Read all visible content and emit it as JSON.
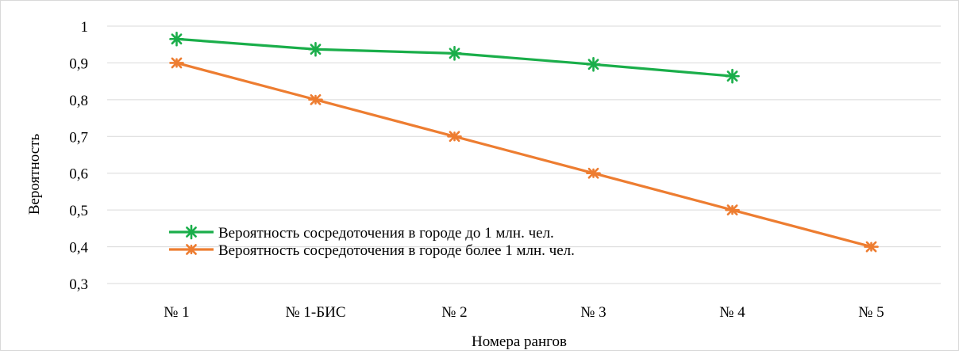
{
  "chart_data": {
    "type": "line",
    "title": "",
    "xlabel": "Номера рангов",
    "ylabel": "Вероятность",
    "ylim": [
      0.3,
      1
    ],
    "y_ticks": [
      "0,3",
      "0,4",
      "0,5",
      "0,6",
      "0,7",
      "0,8",
      "0,9",
      "1"
    ],
    "y_tick_values": [
      0.3,
      0.4,
      0.5,
      0.6,
      0.7,
      0.8,
      0.9,
      1.0
    ],
    "grid": true,
    "legend_position": "bottom-left",
    "categories": [
      "№ 1",
      "№ 1-БИС",
      "№ 2",
      "№ 3",
      "№ 4",
      "№ 5"
    ],
    "series": [
      {
        "name": "Вероятность сосредоточения в городе до 1 млн. чел.",
        "color": "#1aae4a",
        "marker": "asterisk",
        "values": [
          0.965,
          0.937,
          0.926,
          0.896,
          0.864,
          null
        ]
      },
      {
        "name": "Вероятность сосредоточения в городе более 1 млн. чел.",
        "color": "#ed7d31",
        "marker": "asterisk-x",
        "values": [
          0.9,
          0.8,
          0.7,
          0.6,
          0.5,
          0.4
        ]
      }
    ]
  }
}
